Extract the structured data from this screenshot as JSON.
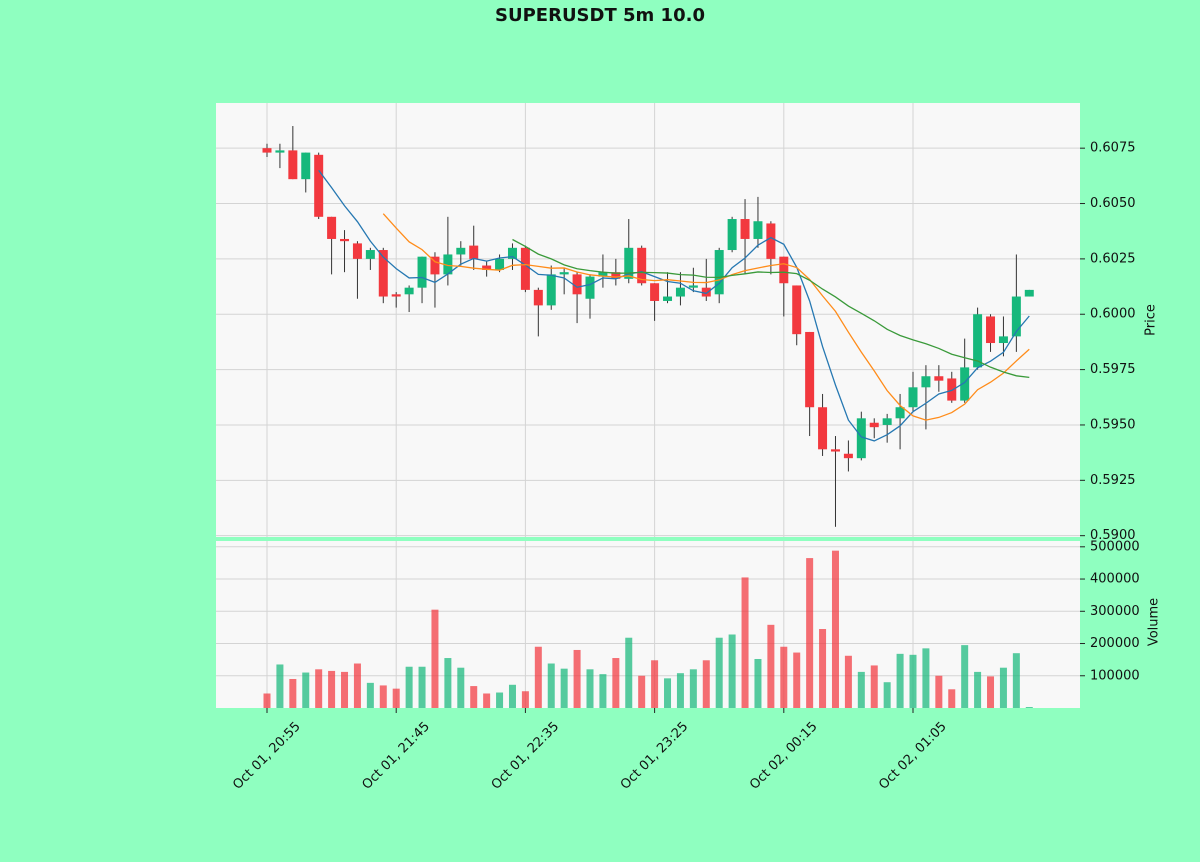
{
  "chart_data": {
    "type": "candlestick",
    "title": "SUPERUSDT 5m 10.0",
    "ylabel": "Price",
    "volume_ylabel": "Volume",
    "categories": [
      "Oct 01, 20:55",
      null,
      null,
      null,
      null,
      null,
      null,
      null,
      null,
      null,
      "Oct 01, 21:45",
      null,
      null,
      null,
      null,
      null,
      null,
      null,
      null,
      null,
      "Oct 01, 22:35",
      null,
      null,
      null,
      null,
      null,
      null,
      null,
      null,
      null,
      "Oct 01, 23:25",
      null,
      null,
      null,
      null,
      null,
      null,
      null,
      null,
      null,
      "Oct 02, 00:15",
      null,
      null,
      null,
      null,
      null,
      null,
      null,
      null,
      null,
      "Oct 02, 01:05",
      null,
      null,
      null,
      null,
      null,
      null,
      null,
      null,
      null
    ],
    "open": [
      0.6075,
      0.6073,
      0.6074,
      0.6061,
      0.6072,
      0.6044,
      0.6034,
      0.6032,
      0.6025,
      0.6029,
      0.6009,
      0.6009,
      0.6012,
      0.6026,
      0.6018,
      0.6027,
      0.6031,
      0.6022,
      0.602,
      0.6025,
      0.603,
      0.6011,
      0.6004,
      0.6018,
      0.6018,
      0.6007,
      0.6017,
      0.6019,
      0.6016,
      0.603,
      0.6014,
      0.6006,
      0.6008,
      0.6012,
      0.6012,
      0.6009,
      0.6029,
      0.6043,
      0.6034,
      0.6041,
      0.6026,
      0.6013,
      0.5992,
      0.5958,
      0.5939,
      0.5937,
      0.5935,
      0.5951,
      0.595,
      0.5953,
      0.5958,
      0.5967,
      0.5972,
      0.5971,
      0.5961,
      0.5976,
      0.5999,
      0.5987,
      0.599,
      0.6008
    ],
    "high": [
      0.6077,
      0.6077,
      0.6085,
      0.6073,
      0.6073,
      0.6044,
      0.6038,
      0.6033,
      0.603,
      0.603,
      0.601,
      0.6013,
      0.6026,
      0.6028,
      0.6044,
      0.6033,
      0.604,
      0.6024,
      0.6027,
      0.6032,
      0.6031,
      0.6012,
      0.6022,
      0.6021,
      0.6019,
      0.6018,
      0.6027,
      0.6025,
      0.6043,
      0.6031,
      0.6014,
      0.6019,
      0.6019,
      0.6021,
      0.6025,
      0.603,
      0.6044,
      0.6052,
      0.6053,
      0.6042,
      0.6026,
      0.6013,
      0.5992,
      0.5964,
      0.5945,
      0.5943,
      0.5956,
      0.5953,
      0.5955,
      0.5964,
      0.5974,
      0.5977,
      0.5977,
      0.5974,
      0.5989,
      0.6003,
      0.6,
      0.5999,
      0.6027,
      0.6011
    ],
    "low": [
      0.6071,
      0.6066,
      0.6061,
      0.6055,
      0.6043,
      0.6018,
      0.6019,
      0.6007,
      0.602,
      0.6005,
      0.6003,
      0.6001,
      0.6005,
      0.6003,
      0.6013,
      0.6022,
      0.602,
      0.6017,
      0.6019,
      0.602,
      0.601,
      0.599,
      0.6002,
      0.6009,
      0.5996,
      0.5998,
      0.6012,
      0.6013,
      0.6014,
      0.6013,
      0.5997,
      0.6005,
      0.6004,
      0.601,
      0.6006,
      0.6005,
      0.6028,
      0.6018,
      0.603,
      0.6018,
      0.5999,
      0.5986,
      0.5945,
      0.5936,
      0.5904,
      0.5929,
      0.5934,
      0.5944,
      0.5942,
      0.5939,
      0.5956,
      0.5948,
      0.5965,
      0.596,
      0.596,
      0.5975,
      0.5983,
      0.5981,
      0.5983,
      0.6008
    ],
    "close": [
      0.6073,
      0.6074,
      0.6061,
      0.6073,
      0.6044,
      0.6034,
      0.6033,
      0.6025,
      0.6029,
      0.6008,
      0.6008,
      0.6012,
      0.6026,
      0.6018,
      0.6027,
      0.603,
      0.6025,
      0.602,
      0.6025,
      0.603,
      0.6011,
      0.6004,
      0.6018,
      0.6019,
      0.6009,
      0.6017,
      0.6019,
      0.6016,
      0.603,
      0.6014,
      0.6006,
      0.6008,
      0.6012,
      0.6013,
      0.6008,
      0.6029,
      0.6043,
      0.6034,
      0.6042,
      0.6025,
      0.6014,
      0.5991,
      0.5958,
      0.5939,
      0.5938,
      0.5935,
      0.5953,
      0.5949,
      0.5953,
      0.5958,
      0.5967,
      0.5972,
      0.597,
      0.5961,
      0.5976,
      0.6,
      0.5987,
      0.599,
      0.6008,
      0.6011
    ],
    "volume": [
      45000,
      135000,
      90000,
      110000,
      120000,
      115000,
      112000,
      138000,
      78000,
      70000,
      60000,
      128000,
      128000,
      305000,
      155000,
      125000,
      68000,
      45000,
      48000,
      72000,
      52000,
      190000,
      138000,
      122000,
      180000,
      120000,
      105000,
      155000,
      218000,
      100000,
      148000,
      92000,
      108000,
      120000,
      148000,
      218000,
      228000,
      405000,
      152000,
      258000,
      190000,
      172000,
      465000,
      245000,
      488000,
      162000,
      112000,
      132000,
      80000,
      168000,
      165000,
      185000,
      100000,
      58000,
      195000,
      112000,
      98000,
      125000,
      170000,
      3000
    ],
    "up_color": "#16b87c",
    "down_color": "#f2383e",
    "moving_averages": [
      {
        "color": "#2678b2",
        "values": [
          null,
          null,
          null,
          null,
          0.6065,
          0.60572,
          0.6049,
          0.60418,
          0.6033,
          0.60258,
          0.60206,
          0.60164,
          0.60166,
          0.60144,
          0.60182,
          0.60226,
          0.60252,
          0.6024,
          0.60254,
          0.6026,
          0.60222,
          0.6018,
          0.60176,
          0.60164,
          0.60122,
          0.60134,
          0.60164,
          0.6016,
          0.60182,
          0.60192,
          0.6017,
          0.60148,
          0.6014,
          0.60106,
          0.60094,
          0.6014,
          0.6021,
          0.60254,
          0.60312,
          0.60346,
          0.60316,
          0.60212,
          0.6006,
          0.59854,
          0.5968,
          0.59522,
          0.59446,
          0.59428,
          0.59456,
          0.59496,
          0.5956,
          0.59598,
          0.5964,
          0.59656,
          0.59692,
          0.59758,
          0.59788,
          0.59828,
          0.59922,
          0.59992
        ]
      },
      {
        "color": "#ff8c1a",
        "values": [
          null,
          null,
          null,
          null,
          null,
          null,
          null,
          null,
          null,
          0.60454,
          0.60389,
          0.60327,
          0.60292,
          0.60237,
          0.6022,
          0.60216,
          0.60208,
          0.60203,
          0.60199,
          0.60221,
          0.60224,
          0.60216,
          0.60208,
          0.60209,
          0.60191,
          0.60178,
          0.60172,
          0.60168,
          0.60173,
          0.60157,
          0.60152,
          0.60156,
          0.6015,
          0.60144,
          0.60143,
          0.60155,
          0.60179,
          0.60197,
          0.60209,
          0.6022,
          0.60228,
          0.60211,
          0.60157,
          0.60083,
          0.60013,
          0.59919,
          0.59829,
          0.59744,
          0.59655,
          0.59588,
          0.59541,
          0.59522,
          0.59534,
          0.59556,
          0.59594,
          0.59659,
          0.59693,
          0.59734,
          0.59789,
          0.59842
        ]
      },
      {
        "color": "#3a9a3a",
        "values": [
          null,
          null,
          null,
          null,
          null,
          null,
          null,
          null,
          null,
          null,
          null,
          null,
          null,
          null,
          null,
          null,
          null,
          null,
          null,
          0.603375,
          0.603065,
          0.602715,
          0.6025,
          0.60223,
          0.602055,
          0.60197,
          0.6019,
          0.601855,
          0.60186,
          0.60189,
          0.60188,
          0.60186,
          0.60179,
          0.601765,
          0.60167,
          0.601665,
          0.601755,
          0.601825,
          0.60191,
          0.601885,
          0.6019,
          0.601835,
          0.601535,
          0.601135,
          0.60078,
          0.60037,
          0.60004,
          0.599705,
          0.59932,
          0.59904,
          0.598845,
          0.598665,
          0.598455,
          0.598195,
          0.598035,
          0.59789,
          0.59761,
          0.59739,
          0.59722,
          0.59715
        ]
      }
    ],
    "ylim": [
      0.58994,
      0.60954
    ],
    "yticks": [
      {
        "value": 0.59,
        "label": "0.5900"
      },
      0.5925,
      {
        "value": 0.595,
        "label": "0.5950"
      },
      0.5975,
      {
        "value": 0.6,
        "label": "0.6000"
      },
      0.6025,
      {
        "value": 0.605,
        "label": "0.6050"
      },
      0.6075
    ],
    "volume_ylim": [
      0,
      518000
    ],
    "volume_yticks": [
      100000,
      200000,
      300000,
      400000,
      500000
    ],
    "grid": true
  }
}
